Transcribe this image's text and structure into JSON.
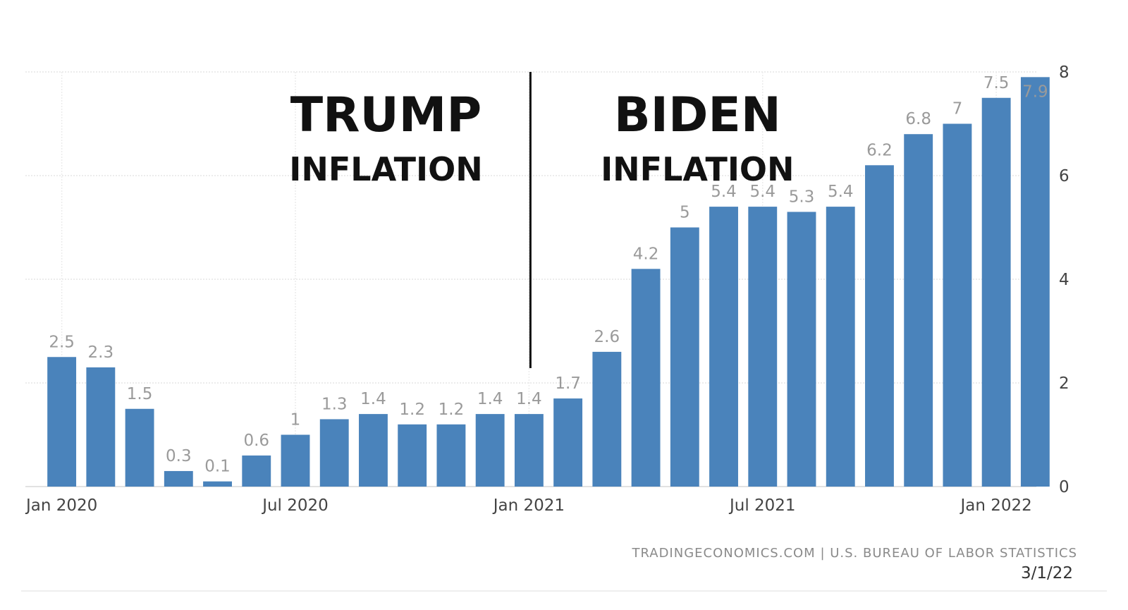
{
  "chart_data": {
    "type": "bar",
    "categories": [
      "Jan 2020",
      "Feb 2020",
      "Mar 2020",
      "Apr 2020",
      "May 2020",
      "Jun 2020",
      "Jul 2020",
      "Aug 2020",
      "Sep 2020",
      "Oct 2020",
      "Nov 2020",
      "Dec 2020",
      "Jan 2021",
      "Feb 2021",
      "Mar 2021",
      "Apr 2021",
      "May 2021",
      "Jun 2021",
      "Jul 2021",
      "Aug 2021",
      "Sep 2021",
      "Oct 2021",
      "Nov 2021",
      "Dec 2021",
      "Jan 2022",
      "Feb 2022"
    ],
    "values": [
      2.5,
      2.3,
      1.5,
      0.3,
      0.1,
      0.6,
      1,
      1.3,
      1.4,
      1.2,
      1.2,
      1.4,
      1.4,
      1.7,
      2.6,
      4.2,
      5,
      5.4,
      5.4,
      5.3,
      5.4,
      6.2,
      6.8,
      7,
      7.5,
      7.9
    ],
    "data_labels": [
      "2.5",
      "2.3",
      "1.5",
      "0.3",
      "0.1",
      "0.6",
      "1",
      "1.3",
      "1.4",
      "1.2",
      "1.2",
      "1.4",
      "1.4",
      "1.7",
      "2.6",
      "4.2",
      "5",
      "5.4",
      "5.4",
      "5.3",
      "5.4",
      "6.2",
      "6.8",
      "7",
      "7.5",
      "7.9"
    ],
    "x_tick_labels": [
      {
        "category": "Jan 2020",
        "label": "Jan 2020"
      },
      {
        "category": "Jul 2020",
        "label": "Jul 2020"
      },
      {
        "category": "Jan 2021",
        "label": "Jan 2021"
      },
      {
        "category": "Jul 2021",
        "label": "Jul 2021"
      },
      {
        "category": "Jan 2022",
        "label": "Jan 2022"
      }
    ],
    "y_ticks": [
      0,
      2,
      4,
      6,
      8
    ],
    "ylim": [
      0,
      8
    ],
    "y_axis_side": "right",
    "grid": true,
    "bar_color": "#4a83bb",
    "annotations": [
      {
        "text": "TRUMP",
        "category": "Sep 2020",
        "style": "heading"
      },
      {
        "text": "INFLATION",
        "category": "Sep 2020",
        "style": "subheading"
      },
      {
        "text": "BIDEN",
        "category": "May 2021",
        "style": "heading"
      },
      {
        "text": "INFLATION",
        "category": "May 2021",
        "style": "subheading"
      }
    ],
    "divider_at": "Jan 2021",
    "source": "TRADINGECONOMICS.COM  |  U.S. BUREAU OF LABOR STATISTICS",
    "date_note": "3/1/22"
  }
}
